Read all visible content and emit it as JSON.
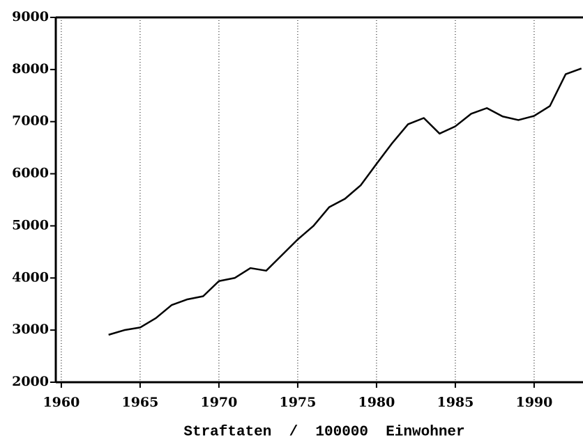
{
  "chart_data": {
    "type": "line",
    "x_label": "Straftaten  /  100000  Einwohner",
    "x": [
      1963,
      1964,
      1965,
      1966,
      1967,
      1968,
      1969,
      1970,
      1971,
      1972,
      1973,
      1974,
      1975,
      1976,
      1977,
      1978,
      1979,
      1980,
      1981,
      1982,
      1983,
      1984,
      1985,
      1986,
      1987,
      1988,
      1989,
      1990,
      1991,
      1992,
      1993
    ],
    "values": [
      2910,
      3000,
      3050,
      3230,
      3480,
      3590,
      3650,
      3940,
      4000,
      4190,
      4140,
      4440,
      4740,
      5000,
      5360,
      5520,
      5780,
      6190,
      6590,
      6950,
      7070,
      6770,
      6910,
      7150,
      7260,
      7100,
      7030,
      7110,
      7300,
      7910,
      8020
    ],
    "color": "#000000",
    "xlim": [
      1959.65,
      1993.1
    ],
    "xticks": [
      1960,
      1965,
      1970,
      1975,
      1980,
      1985,
      1990
    ],
    "ylim": [
      2000,
      9000
    ],
    "yticks": [
      2000,
      3000,
      4000,
      5000,
      6000,
      7000,
      8000,
      9000
    ],
    "grid": true
  }
}
